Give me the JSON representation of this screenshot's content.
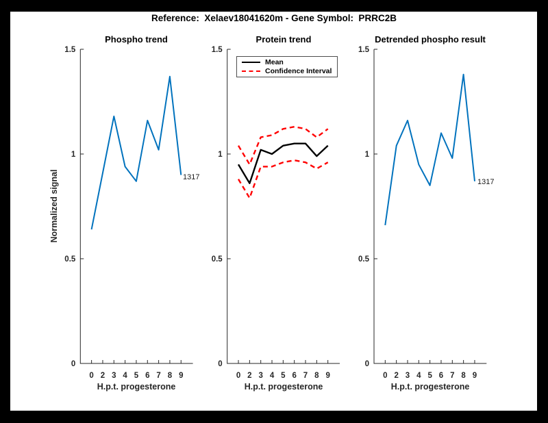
{
  "figure": {
    "title": "Reference:  Xelaev18041620m - Gene Symbol:  PRRC2B",
    "background_color": "#ffffff",
    "frame_color": "#000000"
  },
  "shared": {
    "ylabel": "Normalized signal",
    "axis_color": "#262626",
    "blue": "#0072BD",
    "red": "#FF0000",
    "black": "#000000"
  },
  "chart_data": [
    {
      "type": "line",
      "title": "Phospho trend",
      "xlabel": "H.p.t. progesterone",
      "ylabel": "Normalized signal",
      "x_ticklabels": [
        "0",
        "2",
        "3",
        "4",
        "5",
        "6",
        "7",
        "8",
        "9"
      ],
      "y_ticks": [
        0,
        0.5,
        1,
        1.5
      ],
      "y_ticklabels": [
        "0",
        "0.5",
        "1",
        "1.5"
      ],
      "ylim": [
        0,
        1.5
      ],
      "grid": false,
      "end_label": "1317",
      "series": [
        {
          "name": "1317",
          "color": "#0072BD",
          "style": "solid",
          "values": [
            0.64,
            0.91,
            1.18,
            0.94,
            0.87,
            1.16,
            1.02,
            1.37,
            0.9
          ]
        }
      ]
    },
    {
      "type": "line",
      "title": "Protein trend",
      "xlabel": "H.p.t. progesterone",
      "x_ticklabels": [
        "0",
        "2",
        "3",
        "4",
        "5",
        "6",
        "7",
        "8",
        "9"
      ],
      "y_ticks": [
        0,
        0.5,
        1,
        1.5
      ],
      "y_ticklabels": [
        "0",
        "0.5",
        "1",
        "1.5"
      ],
      "ylim": [
        0,
        1.5
      ],
      "grid": false,
      "legend": {
        "position": "top-left",
        "entries": [
          {
            "label": "Mean",
            "color": "#000000",
            "style": "solid"
          },
          {
            "label": "Confidence Interval",
            "color": "#FF0000",
            "style": "dashed"
          }
        ]
      },
      "series": [
        {
          "name": "Mean",
          "color": "#000000",
          "style": "solid",
          "values": [
            0.95,
            0.86,
            1.02,
            1.0,
            1.04,
            1.05,
            1.05,
            0.99,
            1.04
          ]
        },
        {
          "name": "Confidence Interval upper",
          "color": "#FF0000",
          "style": "dashed",
          "values": [
            1.04,
            0.95,
            1.08,
            1.09,
            1.12,
            1.13,
            1.12,
            1.08,
            1.12
          ]
        },
        {
          "name": "Confidence Interval lower",
          "color": "#FF0000",
          "style": "dashed",
          "values": [
            0.88,
            0.79,
            0.94,
            0.94,
            0.96,
            0.97,
            0.96,
            0.93,
            0.96
          ]
        }
      ]
    },
    {
      "type": "line",
      "title": "Detrended phospho result",
      "xlabel": "H.p.t. progesterone",
      "x_ticklabels": [
        "0",
        "2",
        "3",
        "4",
        "5",
        "6",
        "7",
        "8",
        "9"
      ],
      "y_ticks": [
        0,
        0.5,
        1,
        1.5
      ],
      "y_ticklabels": [
        "0",
        "0.5",
        "1",
        "1.5"
      ],
      "ylim": [
        0,
        1.5
      ],
      "grid": false,
      "end_label": "1317",
      "series": [
        {
          "name": "1317",
          "color": "#0072BD",
          "style": "solid",
          "values": [
            0.66,
            1.04,
            1.16,
            0.95,
            0.85,
            1.1,
            0.98,
            1.38,
            0.87
          ]
        }
      ]
    }
  ]
}
